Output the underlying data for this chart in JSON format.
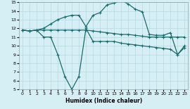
{
  "xlabel": "Humidex (Indice chaleur)",
  "background_color": "#d6eff5",
  "line_color": "#1a6b6b",
  "grid_color": "#b8d8e0",
  "xlim": [
    -0.5,
    23.5
  ],
  "ylim": [
    5,
    15
  ],
  "xticks": [
    0,
    1,
    2,
    3,
    4,
    5,
    6,
    7,
    8,
    9,
    10,
    11,
    12,
    13,
    14,
    15,
    16,
    17,
    18,
    19,
    20,
    21,
    22,
    23
  ],
  "yticks": [
    5,
    6,
    7,
    8,
    9,
    10,
    11,
    12,
    13,
    14,
    15
  ],
  "series_v_x": [
    0,
    1,
    2,
    3,
    4,
    5,
    6,
    7,
    8,
    9,
    10,
    11,
    12,
    13,
    14,
    15,
    16,
    17,
    18,
    19,
    20,
    21,
    22,
    23
  ],
  "series_v_y": [
    11.8,
    11.7,
    11.8,
    11.0,
    11.0,
    9.0,
    6.5,
    5.0,
    6.5,
    12.0,
    10.5,
    10.5,
    10.5,
    10.5,
    10.3,
    10.2,
    10.1,
    10.0,
    9.9,
    9.8,
    9.7,
    9.6,
    9.0,
    10.0
  ],
  "series_flat_x": [
    0,
    1,
    2,
    3,
    4,
    5,
    6,
    7,
    8,
    9,
    10,
    11,
    12,
    13,
    14,
    15,
    16,
    17,
    18,
    19,
    20,
    21,
    22,
    23
  ],
  "series_flat_y": [
    11.8,
    11.7,
    11.8,
    11.8,
    11.8,
    11.8,
    11.8,
    11.8,
    11.8,
    11.8,
    11.7,
    11.6,
    11.5,
    11.4,
    11.3,
    11.3,
    11.2,
    11.1,
    11.0,
    11.0,
    11.0,
    11.0,
    11.0,
    11.0
  ],
  "series_peak_x": [
    0,
    1,
    2,
    3,
    4,
    5,
    6,
    7,
    8,
    9,
    10,
    11,
    12,
    13,
    14,
    15,
    16,
    17,
    18,
    19,
    20,
    21,
    22,
    23
  ],
  "series_peak_y": [
    11.8,
    11.7,
    11.8,
    12.0,
    12.5,
    13.0,
    13.3,
    13.5,
    13.5,
    12.2,
    13.5,
    13.8,
    14.7,
    14.9,
    15.2,
    14.8,
    14.2,
    13.9,
    11.3,
    11.2,
    11.2,
    11.5,
    9.0,
    9.8
  ]
}
